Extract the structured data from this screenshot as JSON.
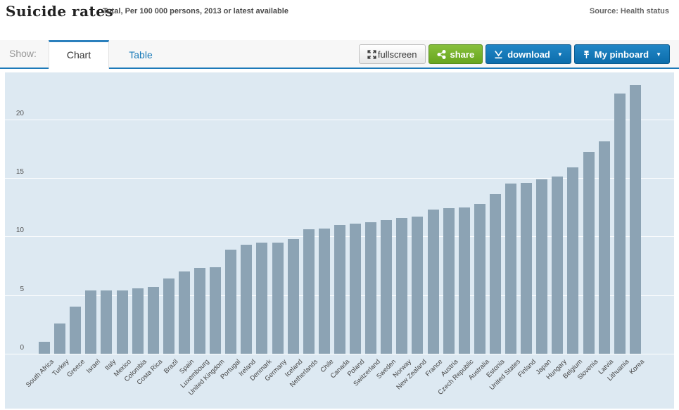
{
  "header": {
    "title": "Suicide rates",
    "subtitle": "Total, Per 100 000 persons, 2013 or latest available",
    "source": "Source: Health status"
  },
  "toolbar": {
    "show_label": "Show:",
    "tabs": [
      {
        "label": "Chart",
        "active": true
      },
      {
        "label": "Table",
        "active": false
      }
    ],
    "buttons": {
      "fullscreen": "fullscreen",
      "share": "share",
      "download": "download",
      "pinboard": "My pinboard",
      "caret": "▼"
    }
  },
  "colors": {
    "accent_blue": "#1d7ab9",
    "button_blue": "#0c6dab",
    "button_green": "#68a51e",
    "bar_color": "#8ca3b4",
    "plot_background": "#dde9f2",
    "gridline": "#ffffff"
  },
  "chart_data": {
    "type": "bar",
    "title": "Suicide rates",
    "subtitle": "Total, Per 100 000 persons, 2013 or latest available",
    "xlabel": "",
    "ylabel": "",
    "ylim": [
      0,
      24
    ],
    "yticks": [
      0,
      5,
      10,
      15,
      20
    ],
    "grid": true,
    "legend": "none",
    "categories": [
      "South Africa",
      "Turkey",
      "Greece",
      "Israel",
      "Italy",
      "Mexico",
      "Colombia",
      "Costa Rica",
      "Brazil",
      "Spain",
      "Luxembourg",
      "United Kingdom",
      "Portugal",
      "Ireland",
      "Denmark",
      "Germany",
      "Iceland",
      "Netherlands",
      "Chile",
      "Canada",
      "Poland",
      "Switzerland",
      "Sweden",
      "Norway",
      "New Zealand",
      "France",
      "Austria",
      "Czech Republic",
      "Australia",
      "Estonia",
      "United States",
      "Finland",
      "Japan",
      "Hungary",
      "Belgium",
      "Slovenia",
      "Latvia",
      "Lithuania",
      "Korea"
    ],
    "values": [
      1.0,
      2.6,
      4.0,
      5.4,
      5.4,
      5.4,
      5.6,
      5.7,
      6.4,
      7.0,
      7.3,
      7.4,
      8.9,
      9.3,
      9.5,
      9.5,
      9.8,
      10.6,
      10.7,
      11.0,
      11.1,
      11.2,
      11.4,
      11.6,
      11.7,
      12.3,
      12.4,
      12.5,
      12.8,
      13.6,
      14.5,
      14.6,
      14.9,
      15.1,
      15.9,
      17.2,
      18.1,
      22.2,
      22.9
    ]
  }
}
